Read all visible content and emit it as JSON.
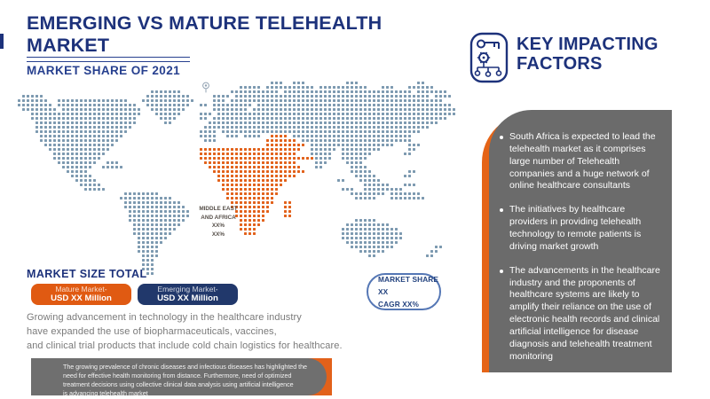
{
  "colors": {
    "navy": "#1d327b",
    "orange": "#e2611a",
    "panel_gray": "#6b6b6b",
    "dot_blue": "#7c99b0"
  },
  "header": {
    "title": "EMERGING VS MATURE TELEHEALTH\nMARKET",
    "subtitle": "MARKET SHARE OF 2021"
  },
  "map": {
    "region_label": "MIDDLE EAST\nAND AFRICA\nXX%\nXX%",
    "rows": [
      [
        [
          57,
          59
        ],
        [
          62,
          64
        ],
        [
          74,
          76
        ],
        [
          90,
          91
        ]
      ],
      [
        [
          50,
          54
        ],
        [
          56,
          66
        ],
        [
          68,
          78
        ],
        [
          82,
          84
        ],
        [
          88,
          93
        ]
      ],
      [
        [
          30,
          36
        ],
        [
          48,
          58
        ],
        [
          60,
          88
        ],
        [
          90,
          96
        ]
      ],
      [
        [
          1,
          5
        ],
        [
          29,
          38
        ],
        [
          44,
          47
        ],
        [
          49,
          92
        ],
        [
          94,
          97
        ]
      ],
      [
        [
          0,
          6
        ],
        [
          9,
          24
        ],
        [
          28,
          39
        ],
        [
          44,
          46
        ],
        [
          48,
          95
        ]
      ],
      [
        [
          0,
          7
        ],
        [
          9,
          26
        ],
        [
          29,
          38
        ],
        [
          41,
          42
        ],
        [
          44,
          52
        ],
        [
          54,
          97
        ]
      ],
      [
        [
          1,
          8
        ],
        [
          10,
          27
        ],
        [
          30,
          37
        ],
        [
          44,
          51
        ],
        [
          53,
          98
        ]
      ],
      [
        [
          3,
          27
        ],
        [
          31,
          36
        ],
        [
          41,
          43
        ],
        [
          45,
          98
        ]
      ],
      [
        [
          3,
          26
        ],
        [
          32,
          35
        ],
        [
          41,
          42
        ],
        [
          44,
          96
        ]
      ],
      [
        [
          4,
          26
        ],
        [
          33,
          34
        ],
        [
          43,
          94
        ]
      ],
      [
        [
          4,
          25
        ],
        [
          42,
          92
        ]
      ],
      [
        [
          4,
          24
        ],
        [
          41,
          44
        ],
        [
          46,
          55
        ],
        [
          56,
          90
        ]
      ],
      [
        [
          5,
          23
        ],
        [
          41,
          44
        ],
        [
          47,
          49
        ],
        [
          51,
          54
        ],
        [
          57,
          60,
          "o"
        ],
        [
          62,
          88
        ]
      ],
      [
        [
          5,
          22
        ],
        [
          42,
          44
        ],
        [
          56,
          62,
          "o"
        ],
        [
          64,
          86
        ],
        [
          87,
          88
        ]
      ],
      [
        [
          6,
          21
        ],
        [
          56,
          64,
          "o"
        ],
        [
          66,
          84
        ],
        [
          88,
          90
        ]
      ],
      [
        [
          7,
          20
        ],
        [
          41,
          63,
          "o"
        ],
        [
          66,
          71
        ],
        [
          73,
          81
        ],
        [
          88,
          89
        ]
      ],
      [
        [
          8,
          19
        ],
        [
          41,
          62,
          "o"
        ],
        [
          66,
          70
        ],
        [
          73,
          79
        ],
        [
          87,
          88
        ]
      ],
      [
        [
          8,
          18
        ],
        [
          41,
          66,
          "o"
        ],
        [
          67,
          70
        ],
        [
          73,
          78
        ]
      ],
      [
        [
          9,
          17
        ],
        [
          20,
          22
        ],
        [
          42,
          62,
          "o"
        ],
        [
          67,
          69
        ],
        [
          74,
          77
        ]
      ],
      [
        [
          10,
          16
        ],
        [
          19,
          23
        ],
        [
          43,
          63,
          "o"
        ],
        [
          67,
          68
        ],
        [
          75,
          78
        ]
      ],
      [
        [
          11,
          15
        ],
        [
          44,
          64,
          "o"
        ],
        [
          75,
          79
        ],
        [
          88,
          89
        ]
      ],
      [
        [
          12,
          16
        ],
        [
          45,
          62,
          "o"
        ],
        [
          76,
          80
        ],
        [
          87,
          88
        ]
      ],
      [
        [
          13,
          17
        ],
        [
          45,
          60,
          "o"
        ],
        [
          72,
          73
        ],
        [
          77,
          81
        ]
      ],
      [
        [
          14,
          18
        ],
        [
          46,
          59,
          "o"
        ],
        [
          78,
          83
        ],
        [
          87,
          89
        ]
      ],
      [
        [
          15,
          19
        ],
        [
          46,
          58,
          "o"
        ],
        [
          73,
          75
        ],
        [
          78,
          86
        ]
      ],
      [
        [
          24,
          31
        ],
        [
          47,
          58,
          "o"
        ],
        [
          75,
          82
        ],
        [
          84,
          90
        ]
      ],
      [
        [
          23,
          34
        ],
        [
          47,
          57,
          "o"
        ],
        [
          76,
          80
        ],
        [
          84,
          91
        ]
      ],
      [
        [
          24,
          36
        ],
        [
          48,
          57,
          "o"
        ],
        [
          60,
          61,
          "o"
        ]
      ],
      [
        [
          24,
          37
        ],
        [
          48,
          56,
          "o"
        ],
        [
          60,
          61,
          "o"
        ]
      ],
      [
        [
          25,
          38
        ],
        [
          49,
          56,
          "o"
        ],
        [
          60,
          61,
          "o"
        ]
      ],
      [
        [
          25,
          38
        ],
        [
          49,
          55,
          "o"
        ],
        [
          60,
          61,
          "o"
        ]
      ],
      [
        [
          25,
          37
        ],
        [
          50,
          55,
          "o"
        ],
        [
          76,
          80
        ]
      ],
      [
        [
          26,
          36
        ],
        [
          50,
          54,
          "o"
        ],
        [
          74,
          83
        ]
      ],
      [
        [
          26,
          35
        ],
        [
          50,
          53,
          "o"
        ],
        [
          73,
          85
        ]
      ],
      [
        [
          26,
          34
        ],
        [
          51,
          53,
          "o"
        ],
        [
          73,
          86
        ]
      ],
      [
        [
          27,
          33
        ],
        [
          73,
          86
        ]
      ],
      [
        [
          27,
          32
        ],
        [
          74,
          85
        ]
      ],
      [
        [
          27,
          31
        ],
        [
          75,
          84
        ],
        [
          94,
          95
        ]
      ],
      [
        [
          27,
          31
        ],
        [
          77,
          82
        ],
        [
          93,
          94
        ]
      ],
      [
        [
          28,
          31
        ],
        [
          79,
          80
        ],
        [
          92,
          93
        ]
      ],
      [
        [
          28,
          30
        ]
      ],
      [
        [
          28,
          30
        ]
      ],
      [
        [
          28,
          30
        ]
      ],
      [
        [
          29,
          30
        ]
      ]
    ]
  },
  "market_size": {
    "heading": "MARKET SIZE TOTAL",
    "legend": [
      {
        "label": "Mature Market-",
        "value": "USD XX Million"
      },
      {
        "label": "Emerging Market-",
        "value": "USD XX Million"
      }
    ]
  },
  "share_badge": {
    "line1": "MARKET SHARE XX",
    "line2": "CAGR XX%"
  },
  "intro_paragraph": "Growing advancement in technology in the healthcare industry\nhave expanded the use of biopharmaceuticals, vaccines,\nand clinical trial products that include cold chain logistics for healthcare.",
  "callout": "The growing prevalence of chronic diseases and infectious diseases has highlighted the\nneed for effective health monitoring from distance. Furthermore, need of optimized\ntreatment decisions using collective clinical data analysis  using artificial intelligence\nis advancing telehealth market",
  "key_factors": {
    "title": "KEY IMPACTING\nFACTORS",
    "icon": "key-gear-network-icon",
    "bullets": [
      "South Africa is expected to lead the telehealth market as it comprises large number of Telehealth companies and a huge network of online healthcare consultants",
      "The initiatives by healthcare providers in providing telehealth technology to remote patients is driving market growth",
      "The advancements in the healthcare industry and the proponents of healthcare systems are likely to amplify their reliance on the use of electronic health records and clinical artificial intelligence for disease diagnosis and telehealth treatment monitoring"
    ]
  }
}
